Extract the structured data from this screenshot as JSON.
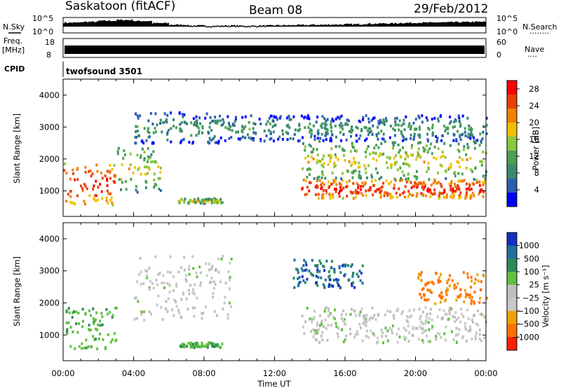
{
  "header": {
    "site": "Saskatoon (fitACF)",
    "beam": "Beam 08",
    "date": "29/Feb/2012"
  },
  "strip_noise": {
    "left_label": "N.Sky",
    "right_label": "N.Search",
    "right_dots": "········",
    "left_ticks": [
      "10^5",
      "10^0"
    ],
    "right_ticks": [
      "10^5",
      "10^0"
    ]
  },
  "strip_freq": {
    "left_label_1": "Freq.",
    "left_label_2": "[MHz]",
    "right_label": "Nave",
    "right_dots": "····",
    "left_ticks": [
      "18",
      "8"
    ],
    "right_ticks": [
      "60",
      "0"
    ]
  },
  "strip_cpid": {
    "label": "CPID",
    "program": "twofsound 3501"
  },
  "colors": {
    "power": [
      "#0000ff",
      "#2a5fb0",
      "#3a8a70",
      "#4aa050",
      "#8ac83a",
      "#f0c000",
      "#f08000",
      "#e84000",
      "#ff0000"
    ],
    "velocity": [
      "#1030c0",
      "#2070a0",
      "#2e8b57",
      "#60c040",
      "#bfbfbf",
      "#c8c8c8",
      "#f0a000",
      "#ff7000",
      "#ff2000"
    ]
  },
  "chart_data": [
    {
      "type": "heatmap",
      "panel": "power",
      "ylabel": "Slant Range [km]",
      "xlabel": "Time UT",
      "ylim": [
        200,
        4500
      ],
      "xlim": [
        "00:00",
        "24:00"
      ],
      "y_ticks": [
        "1000",
        "2000",
        "3000",
        "4000"
      ],
      "x_ticks": [
        "00:00",
        "04:00",
        "08:00",
        "12:00",
        "16:00",
        "20:00",
        "00:00"
      ],
      "colorbar": {
        "label": "Power [dB]",
        "ticks": [
          "4",
          "8",
          "12",
          "16",
          "20",
          "24",
          "28"
        ],
        "range": [
          0,
          30
        ]
      },
      "regions": [
        {
          "t": [
            0.0,
            3.0
          ],
          "r": [
            600,
            1900
          ],
          "level": "high"
        },
        {
          "t": [
            3.0,
            5.5
          ],
          "r": [
            1000,
            2400
          ],
          "level": "mid"
        },
        {
          "t": [
            4.0,
            9.0
          ],
          "r": [
            2500,
            3500
          ],
          "level": "low"
        },
        {
          "t": [
            6.5,
            9.0
          ],
          "r": [
            650,
            800
          ],
          "level": "mid"
        },
        {
          "t": [
            13.5,
            24.0
          ],
          "r": [
            800,
            1400
          ],
          "level": "high"
        },
        {
          "t": [
            13.5,
            24.0
          ],
          "r": [
            1400,
            2600
          ],
          "level": "mid"
        },
        {
          "t": [
            9.0,
            24.0
          ],
          "r": [
            2600,
            3400
          ],
          "level": "low"
        }
      ]
    },
    {
      "type": "heatmap",
      "panel": "velocity",
      "ylabel": "Slant Range [km]",
      "xlabel": "Time UT",
      "ylim": [
        200,
        4500
      ],
      "xlim": [
        "00:00",
        "24:00"
      ],
      "y_ticks": [
        "1000",
        "2000",
        "3000",
        "4000"
      ],
      "x_ticks": [
        "00:00",
        "04:00",
        "08:00",
        "12:00",
        "16:00",
        "20:00",
        "00:00"
      ],
      "colorbar": {
        "label": "Velocity [m s⁻¹]",
        "ticks": [
          "1000",
          "500",
          "100",
          "25",
          "−25",
          "−100",
          "−500",
          "−1000"
        ]
      },
      "regions": [
        {
          "t": [
            0.0,
            3.0
          ],
          "r": [
            600,
            1900
          ],
          "velocity": "positive ~100-500"
        },
        {
          "t": [
            4.0,
            9.5
          ],
          "r": [
            1500,
            3500
          ],
          "velocity": "near zero"
        },
        {
          "t": [
            6.5,
            9.0
          ],
          "r": [
            650,
            800
          ],
          "velocity": "positive ~100"
        },
        {
          "t": [
            13.5,
            24.0
          ],
          "r": [
            800,
            1900
          ],
          "velocity": "near zero"
        },
        {
          "t": [
            13.0,
            17.0
          ],
          "r": [
            2500,
            3400
          ],
          "velocity": "positive ~500-1000"
        },
        {
          "t": [
            20.0,
            24.0
          ],
          "r": [
            2000,
            3000
          ],
          "velocity": "negative ~-100"
        }
      ]
    }
  ],
  "noise_series": [
    3.6,
    3.9,
    4.3,
    4.6,
    4.2,
    3.4,
    2.8,
    2.5,
    2.4,
    2.5,
    2.4,
    2.5,
    2.6,
    2.7,
    2.8,
    2.9,
    3.0,
    3.2,
    3.3,
    3.5,
    3.6,
    3.7,
    3.8,
    3.9
  ]
}
